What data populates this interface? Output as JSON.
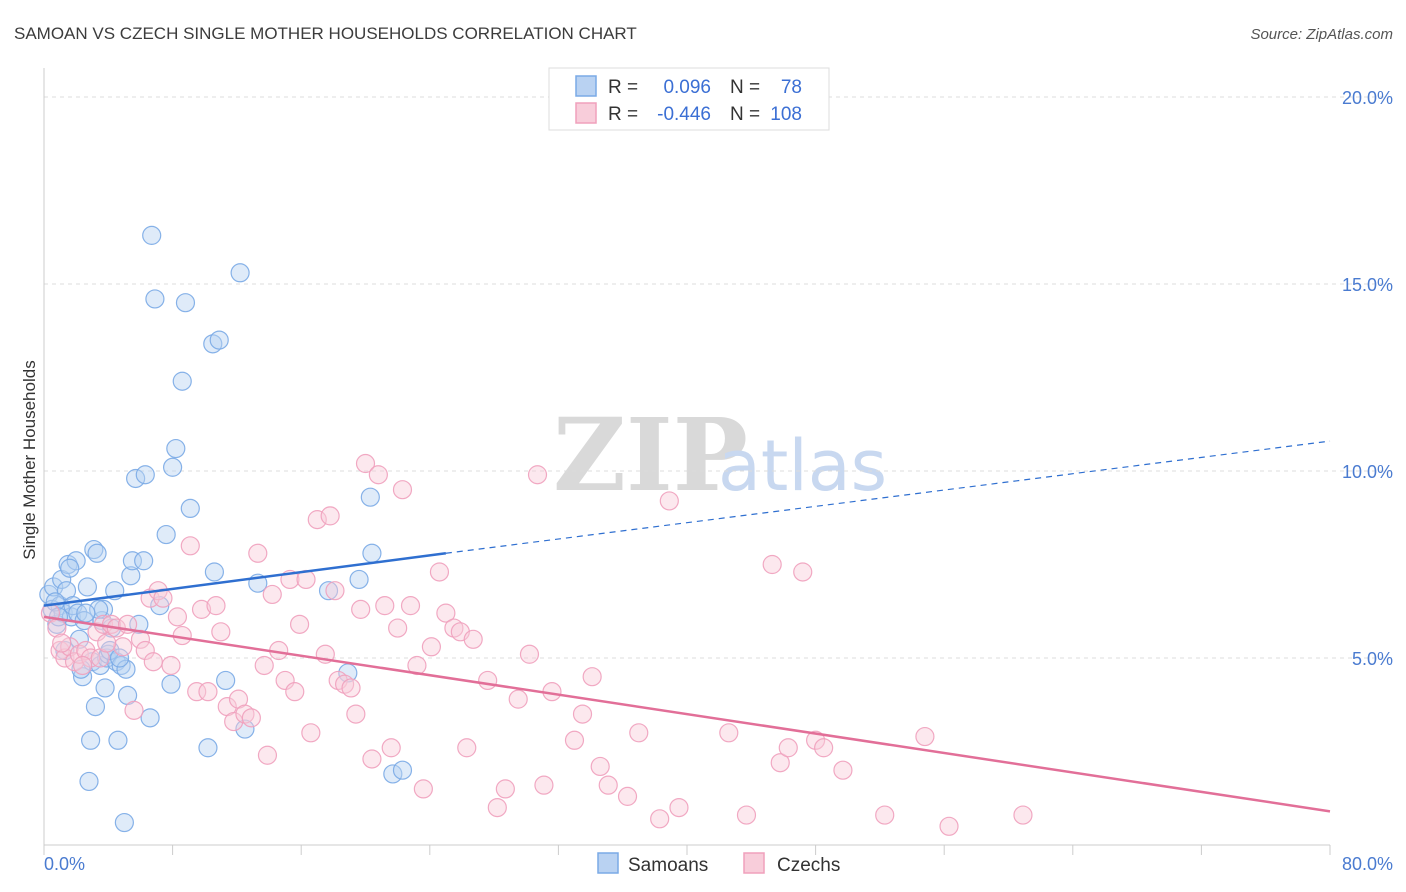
{
  "chart_data": {
    "type": "scatter",
    "title": "SAMOAN VS CZECH SINGLE MOTHER HOUSEHOLDS CORRELATION CHART",
    "source": "Source: ZipAtlas.com",
    "xlabel": "",
    "ylabel": "Single Mother Households",
    "xlim": [
      0,
      80
    ],
    "ylim": [
      0,
      20.5
    ],
    "x_tick_labels": [
      "0.0%",
      "80.0%"
    ],
    "y_ticks": [
      5,
      10,
      15,
      20
    ],
    "y_tick_labels": [
      "5.0%",
      "10.0%",
      "15.0%",
      "20.0%"
    ],
    "watermark": {
      "zip": "ZIP",
      "atlas": "atlas"
    },
    "legend": [
      {
        "r_label": "R =",
        "r_value": "0.096",
        "n_label": "N =",
        "n_value": "78"
      },
      {
        "r_label": "R =",
        "r_value": "-0.446",
        "n_label": "N =",
        "n_value": "108"
      }
    ],
    "series": [
      {
        "name": "Samoans",
        "color": "#7aaae6",
        "fill": "#b9d2f2",
        "line_color": "#2f6fd0",
        "trend": {
          "x0": 0,
          "y0": 6.4,
          "x1": 25,
          "y1": 7.8,
          "dash_x1": 80,
          "dash_y1": 10.8
        },
        "points": [
          [
            0.3,
            6.7
          ],
          [
            0.5,
            6.3
          ],
          [
            0.6,
            6.9
          ],
          [
            0.8,
            5.9
          ],
          [
            1.0,
            6.4
          ],
          [
            1.1,
            7.1
          ],
          [
            1.2,
            6.2
          ],
          [
            1.4,
            6.8
          ],
          [
            1.5,
            7.5
          ],
          [
            1.7,
            6.1
          ],
          [
            1.8,
            6.4
          ],
          [
            2.0,
            7.6
          ],
          [
            2.1,
            6.2
          ],
          [
            2.2,
            5.5
          ],
          [
            2.4,
            4.5
          ],
          [
            2.5,
            6.0
          ],
          [
            2.7,
            6.9
          ],
          [
            2.8,
            1.7
          ],
          [
            2.9,
            2.8
          ],
          [
            3.0,
            4.9
          ],
          [
            3.1,
            7.9
          ],
          [
            3.2,
            3.7
          ],
          [
            3.3,
            7.8
          ],
          [
            3.5,
            4.8
          ],
          [
            3.6,
            6.0
          ],
          [
            3.7,
            6.3
          ],
          [
            3.8,
            4.2
          ],
          [
            3.9,
            5.0
          ],
          [
            4.0,
            5.1
          ],
          [
            4.2,
            5.8
          ],
          [
            4.4,
            6.8
          ],
          [
            4.5,
            4.9
          ],
          [
            4.6,
            2.8
          ],
          [
            4.8,
            4.8
          ],
          [
            5.0,
            0.6
          ],
          [
            5.1,
            4.7
          ],
          [
            5.2,
            4.0
          ],
          [
            5.4,
            7.2
          ],
          [
            5.5,
            7.6
          ],
          [
            5.7,
            9.8
          ],
          [
            5.9,
            5.9
          ],
          [
            6.2,
            7.6
          ],
          [
            6.3,
            9.9
          ],
          [
            6.6,
            3.4
          ],
          [
            6.7,
            16.3
          ],
          [
            6.9,
            14.6
          ],
          [
            7.2,
            6.4
          ],
          [
            7.6,
            8.3
          ],
          [
            7.9,
            4.3
          ],
          [
            8.0,
            10.1
          ],
          [
            8.2,
            10.6
          ],
          [
            8.6,
            12.4
          ],
          [
            8.8,
            14.5
          ],
          [
            9.1,
            9.0
          ],
          [
            10.2,
            2.6
          ],
          [
            10.5,
            13.4
          ],
          [
            10.9,
            13.5
          ],
          [
            10.6,
            7.3
          ],
          [
            11.3,
            4.4
          ],
          [
            12.2,
            15.3
          ],
          [
            12.5,
            3.1
          ],
          [
            13.3,
            7.0
          ],
          [
            17.7,
            6.8
          ],
          [
            18.9,
            4.6
          ],
          [
            19.6,
            7.1
          ],
          [
            20.3,
            9.3
          ],
          [
            20.4,
            7.8
          ],
          [
            21.7,
            1.9
          ],
          [
            22.3,
            2.0
          ],
          [
            0.7,
            6.5
          ],
          [
            1.3,
            5.2
          ],
          [
            2.3,
            4.7
          ],
          [
            3.4,
            6.3
          ],
          [
            4.1,
            5.2
          ],
          [
            0.9,
            6.1
          ],
          [
            1.6,
            7.4
          ],
          [
            2.6,
            6.2
          ],
          [
            4.7,
            5.0
          ]
        ]
      },
      {
        "name": "Czechs",
        "color": "#f0a0bc",
        "fill": "#f8cdda",
        "line_color": "#e26f98",
        "trend": {
          "x0": 0,
          "y0": 6.1,
          "x1": 80,
          "y1": 0.9
        },
        "points": [
          [
            0.4,
            6.2
          ],
          [
            0.8,
            5.8
          ],
          [
            1.0,
            5.2
          ],
          [
            1.3,
            5.0
          ],
          [
            1.6,
            5.3
          ],
          [
            1.9,
            4.9
          ],
          [
            2.2,
            5.1
          ],
          [
            2.6,
            5.2
          ],
          [
            2.9,
            5.0
          ],
          [
            3.3,
            5.7
          ],
          [
            3.5,
            5.0
          ],
          [
            3.7,
            5.9
          ],
          [
            4.2,
            5.9
          ],
          [
            4.5,
            5.8
          ],
          [
            4.9,
            5.3
          ],
          [
            5.2,
            5.9
          ],
          [
            5.6,
            3.6
          ],
          [
            6.0,
            5.5
          ],
          [
            6.3,
            5.2
          ],
          [
            6.6,
            6.6
          ],
          [
            7.1,
            6.8
          ],
          [
            7.4,
            6.6
          ],
          [
            7.9,
            4.8
          ],
          [
            8.3,
            6.1
          ],
          [
            8.6,
            5.6
          ],
          [
            9.1,
            8.0
          ],
          [
            9.5,
            4.1
          ],
          [
            9.8,
            6.3
          ],
          [
            10.2,
            4.1
          ],
          [
            10.7,
            6.4
          ],
          [
            11.0,
            5.7
          ],
          [
            11.4,
            3.7
          ],
          [
            11.8,
            3.3
          ],
          [
            12.1,
            3.9
          ],
          [
            12.5,
            3.5
          ],
          [
            12.9,
            3.4
          ],
          [
            13.3,
            7.8
          ],
          [
            13.7,
            4.8
          ],
          [
            13.9,
            2.4
          ],
          [
            14.2,
            6.7
          ],
          [
            14.6,
            5.2
          ],
          [
            15.0,
            4.4
          ],
          [
            15.3,
            7.1
          ],
          [
            15.6,
            4.1
          ],
          [
            15.9,
            5.9
          ],
          [
            16.3,
            7.1
          ],
          [
            16.6,
            3.0
          ],
          [
            17.0,
            8.7
          ],
          [
            17.5,
            5.1
          ],
          [
            17.8,
            8.8
          ],
          [
            18.1,
            6.8
          ],
          [
            18.3,
            4.4
          ],
          [
            18.7,
            4.3
          ],
          [
            19.1,
            4.2
          ],
          [
            19.4,
            3.5
          ],
          [
            19.7,
            6.3
          ],
          [
            20.0,
            10.2
          ],
          [
            20.4,
            2.3
          ],
          [
            20.8,
            9.9
          ],
          [
            21.2,
            6.4
          ],
          [
            21.6,
            2.6
          ],
          [
            22.0,
            5.8
          ],
          [
            22.3,
            9.5
          ],
          [
            22.8,
            6.4
          ],
          [
            23.2,
            4.8
          ],
          [
            23.6,
            1.5
          ],
          [
            24.1,
            5.3
          ],
          [
            24.6,
            7.3
          ],
          [
            25.0,
            6.2
          ],
          [
            25.5,
            5.8
          ],
          [
            25.9,
            5.7
          ],
          [
            26.3,
            2.6
          ],
          [
            26.7,
            5.5
          ],
          [
            27.6,
            4.4
          ],
          [
            28.2,
            1.0
          ],
          [
            28.7,
            1.5
          ],
          [
            29.5,
            3.9
          ],
          [
            30.2,
            5.1
          ],
          [
            30.7,
            9.9
          ],
          [
            31.1,
            1.6
          ],
          [
            31.6,
            4.1
          ],
          [
            33.0,
            2.8
          ],
          [
            33.5,
            3.5
          ],
          [
            34.1,
            4.5
          ],
          [
            34.6,
            2.1
          ],
          [
            35.1,
            1.6
          ],
          [
            36.3,
            1.3
          ],
          [
            37.0,
            3.0
          ],
          [
            38.3,
            0.7
          ],
          [
            38.9,
            9.2
          ],
          [
            39.5,
            1.0
          ],
          [
            42.6,
            3.0
          ],
          [
            43.7,
            0.8
          ],
          [
            45.3,
            7.5
          ],
          [
            45.8,
            2.2
          ],
          [
            46.3,
            2.6
          ],
          [
            47.2,
            7.3
          ],
          [
            48.0,
            2.8
          ],
          [
            48.5,
            2.6
          ],
          [
            49.7,
            2.0
          ],
          [
            52.3,
            0.8
          ],
          [
            54.8,
            2.9
          ],
          [
            56.3,
            0.5
          ],
          [
            60.9,
            0.8
          ],
          [
            1.1,
            5.4
          ],
          [
            2.4,
            4.8
          ],
          [
            3.9,
            5.4
          ],
          [
            6.8,
            4.9
          ]
        ]
      }
    ]
  },
  "bottom_legend": {
    "samoans": "Samoans",
    "czechs": "Czechs"
  }
}
